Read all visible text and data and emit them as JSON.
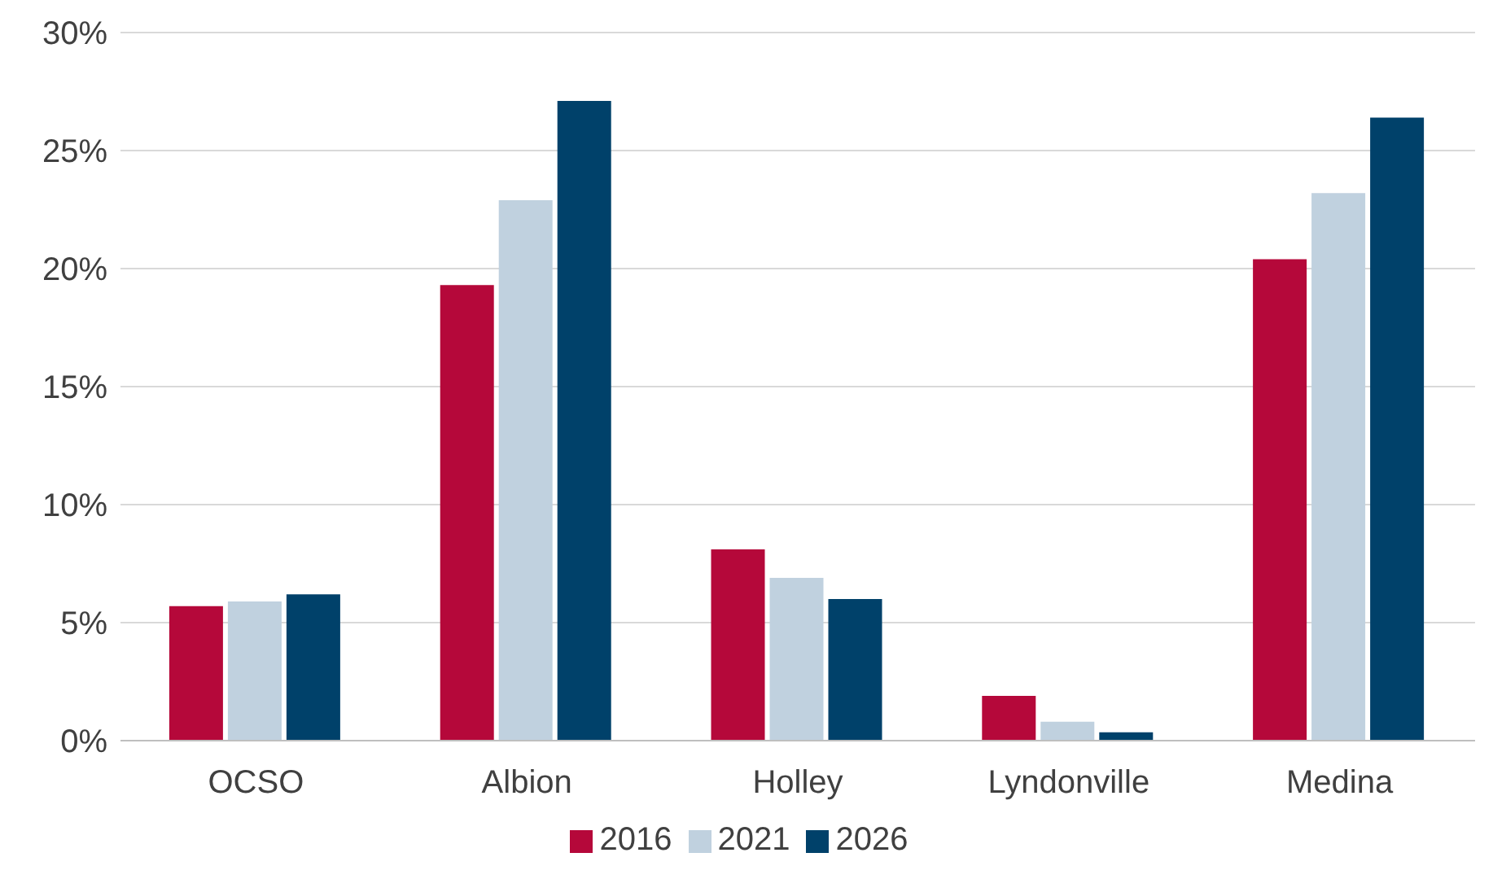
{
  "chart_data": {
    "type": "bar",
    "categories": [
      "OCSO",
      "Albion",
      "Holley",
      "Lyndonville",
      "Medina"
    ],
    "series": [
      {
        "name": "2016",
        "color": "#b5083a",
        "values": [
          5.7,
          19.3,
          8.1,
          1.9,
          20.4
        ]
      },
      {
        "name": "2021",
        "color": "#c0d1df",
        "values": [
          5.9,
          22.9,
          6.9,
          0.8,
          23.2
        ]
      },
      {
        "name": "2026",
        "color": "#00416a",
        "values": [
          6.2,
          27.1,
          6.0,
          0.35,
          26.4
        ]
      }
    ],
    "ylim": [
      0,
      30
    ],
    "yticks": [
      {
        "value": 0,
        "label": "0%"
      },
      {
        "value": 5,
        "label": "5%"
      },
      {
        "value": 10,
        "label": "10%"
      },
      {
        "value": 15,
        "label": "15%"
      },
      {
        "value": 20,
        "label": "20%"
      },
      {
        "value": 25,
        "label": "25%"
      },
      {
        "value": 30,
        "label": "30%"
      }
    ],
    "grid": "y",
    "legend": "bottom"
  }
}
